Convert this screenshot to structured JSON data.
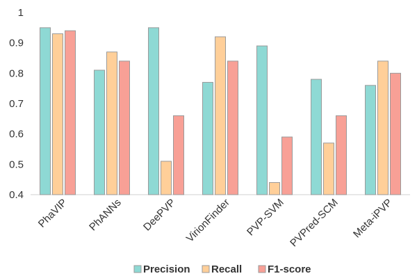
{
  "chart_data": {
    "type": "bar",
    "categories": [
      "PhaVIP",
      "PhANNs",
      "DeePVP",
      "VirionFinder",
      "PVP-SVM",
      "PVPred-SCM",
      "Meta-iPVP"
    ],
    "series": [
      {
        "name": "Precision",
        "color": "#8ED9D4",
        "values": [
          0.95,
          0.81,
          0.95,
          0.77,
          0.89,
          0.78,
          0.76
        ]
      },
      {
        "name": "Recall",
        "color": "#FFCF99",
        "values": [
          0.93,
          0.87,
          0.51,
          0.92,
          0.44,
          0.57,
          0.84
        ]
      },
      {
        "name": "F1-score",
        "color": "#F8A096",
        "values": [
          0.94,
          0.84,
          0.66,
          0.84,
          0.59,
          0.66,
          0.8
        ]
      }
    ],
    "y_ticks": [
      "0.4",
      "0.5",
      "0.6",
      "0.7",
      "0.8",
      "0.9",
      "1"
    ],
    "ylim": [
      0.4,
      1.0
    ],
    "grid": false,
    "bar_outline_color": "#9A9A9A",
    "legend_position": "bottom"
  }
}
